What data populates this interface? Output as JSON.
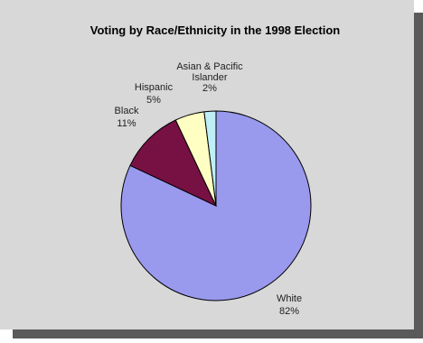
{
  "chart_data": {
    "type": "pie",
    "title": "Voting by Race/Ethnicity in the 1998 Election",
    "slices": [
      {
        "label": "White",
        "value_label": "82%",
        "value": 82,
        "color": "#9999ee"
      },
      {
        "label": "Black",
        "value_label": "11%",
        "value": 11,
        "color": "#771144"
      },
      {
        "label": "Hispanic",
        "value_label": "5%",
        "value": 5,
        "color": "#ffffc4"
      },
      {
        "label": "Asian & Pacific Islander",
        "label_lines": [
          "Asian & Pacific",
          "Islander"
        ],
        "value_label": "2%",
        "value": 2,
        "color": "#bfeff6"
      }
    ],
    "legend": "none"
  },
  "colors": {
    "background": "#d8d8d8",
    "shadow": "#5a5a5a",
    "slice_edge": "#000000"
  }
}
